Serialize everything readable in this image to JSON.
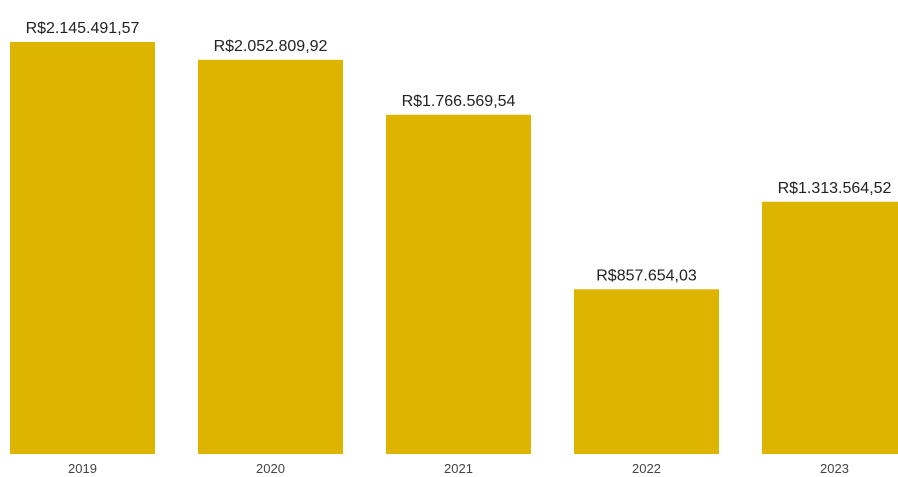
{
  "chart_data": {
    "type": "bar",
    "categories": [
      "2019",
      "2020",
      "2021",
      "2022",
      "2023"
    ],
    "values": [
      2145491.57,
      2052809.92,
      1766569.54,
      857654.03,
      1313564.52
    ],
    "data_labels": [
      "R$2.145.491,57",
      "R$2.052.809,92",
      "R$1.766.569,54",
      "R$857.654,03",
      "R$1.313.564,52"
    ],
    "title": "",
    "xlabel": "",
    "ylabel": "",
    "ylim": [
      0,
      2145491.57
    ],
    "grid": false,
    "legend": "none",
    "colors": {
      "bar": "#DDB400",
      "label": "#222222",
      "tick": "#444444"
    }
  }
}
